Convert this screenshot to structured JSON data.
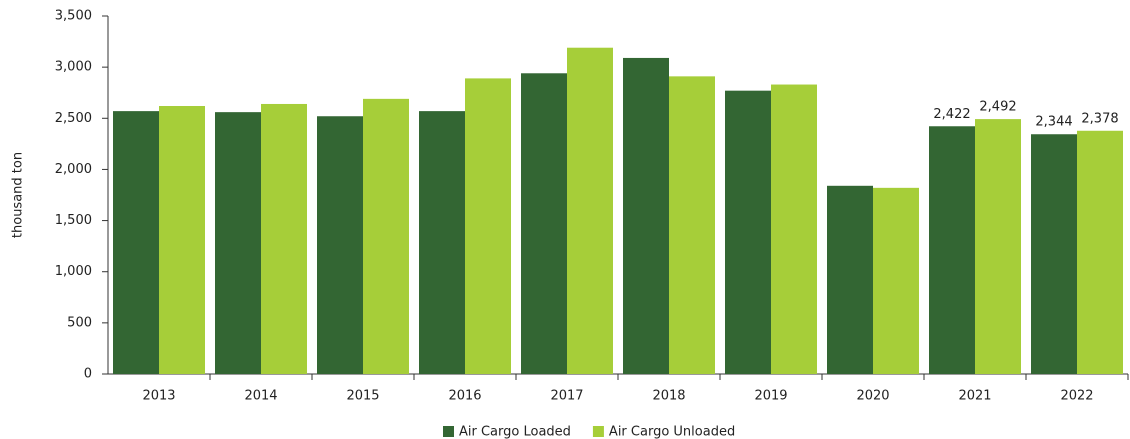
{
  "chart_data": {
    "type": "bar",
    "y_label": "thousand ton",
    "categories": [
      "2013",
      "2014",
      "2015",
      "2016",
      "2017",
      "2018",
      "2019",
      "2020",
      "2021",
      "2022"
    ],
    "series": [
      {
        "name": "Air Cargo Loaded",
        "color": "#336633",
        "values": [
          2570,
          2560,
          2520,
          2570,
          2940,
          3090,
          2770,
          1840,
          2422,
          2344
        ],
        "value_labels": [
          null,
          null,
          null,
          null,
          null,
          null,
          null,
          null,
          "2,422",
          "2,344"
        ]
      },
      {
        "name": "Air Cargo Unloaded",
        "color": "#a6ce39",
        "values": [
          2620,
          2640,
          2690,
          2890,
          3190,
          2910,
          2830,
          1820,
          2492,
          2378
        ],
        "value_labels": [
          null,
          null,
          null,
          null,
          null,
          null,
          null,
          null,
          "2,492",
          "2,378"
        ]
      }
    ],
    "ylim": [
      0,
      3500
    ],
    "yticks": [
      0,
      500,
      {
        "value": 1000,
        "label": "1,000"
      },
      {
        "value": 1500,
        "label": "1,500"
      },
      {
        "value": 2000,
        "label": "2,000"
      },
      {
        "value": 2500,
        "label": "2,500"
      },
      {
        "value": 3000,
        "label": "3,000"
      },
      {
        "value": 3500,
        "label": "3,500"
      }
    ],
    "legend": "bottom"
  }
}
